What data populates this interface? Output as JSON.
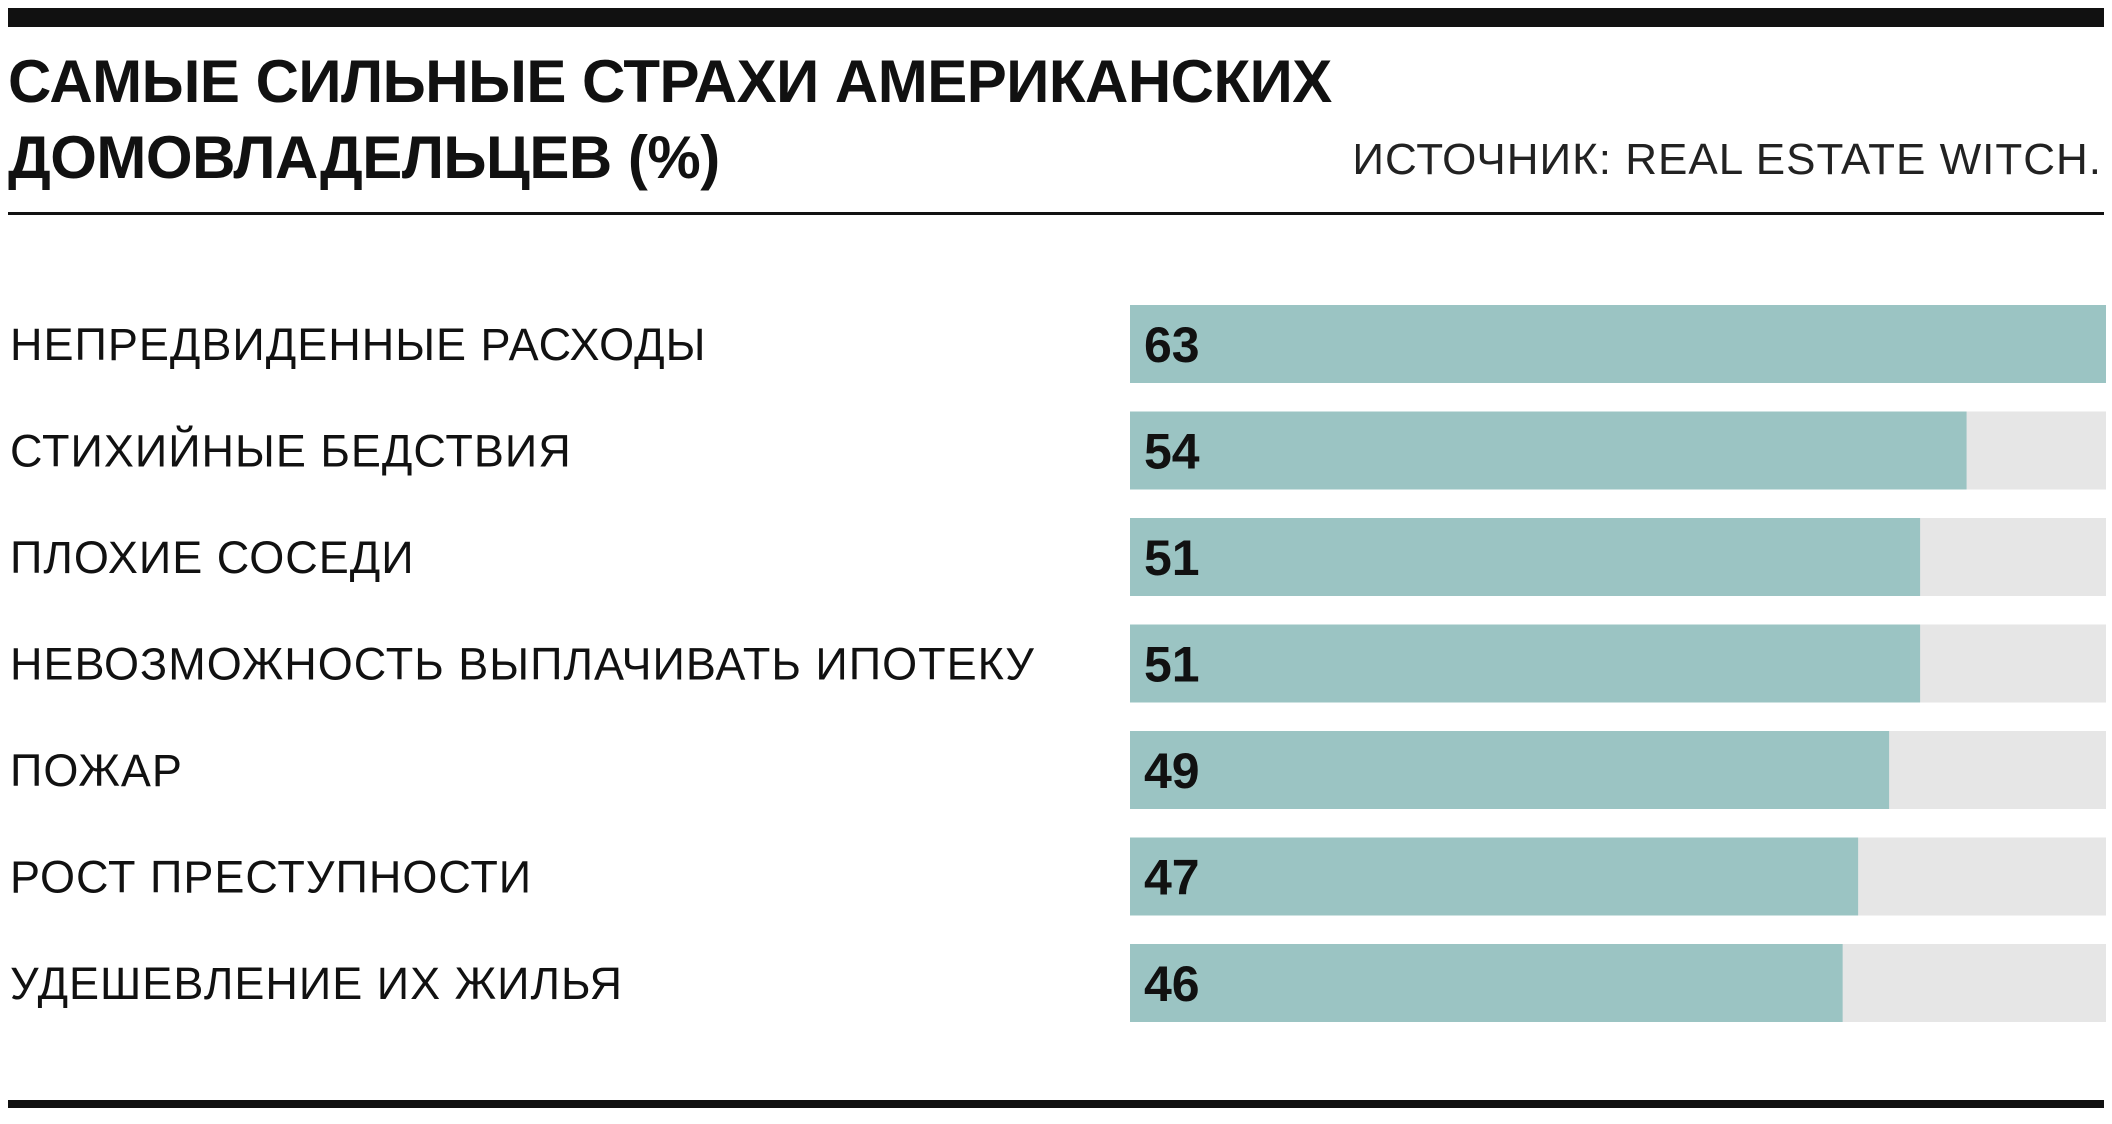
{
  "header": {
    "title_line1": "САМЫЕ СИЛЬНЫЕ СТРАХИ АМЕРИКАНСКИХ",
    "title_line2": "ДОМОВЛАДЕЛЬЦЕВ (%)",
    "source": "ИСТОЧНИК: REAL ESTATE WITCH."
  },
  "colors": {
    "bar": "#9bc4c3",
    "track": "#e6e6e6",
    "text": "#111111"
  },
  "chart_data": {
    "type": "bar",
    "orientation": "horizontal",
    "title": "САМЫЕ СИЛЬНЫЕ СТРАХИ АМЕРИКАНСКИХ ДОМОВЛАДЕЛЬЦЕВ (%)",
    "categories": [
      "НЕПРЕДВИДЕННЫЕ РАСХОДЫ",
      "СТИХИЙНЫЕ БЕДСТВИЯ",
      "ПЛОХИЕ СОСЕДИ",
      "НЕВОЗМОЖНОСТЬ ВЫПЛАЧИВАТЬ ИПОТЕКУ",
      "ПОЖАР",
      "РОСТ ПРЕСТУПНОСТИ",
      "УДЕШЕВЛЕНИЕ ИХ ЖИЛЬЯ"
    ],
    "values": [
      63,
      54,
      51,
      51,
      49,
      47,
      46
    ],
    "xlim": [
      0,
      63
    ],
    "grid": false,
    "legend": "none",
    "data_labels": true
  }
}
